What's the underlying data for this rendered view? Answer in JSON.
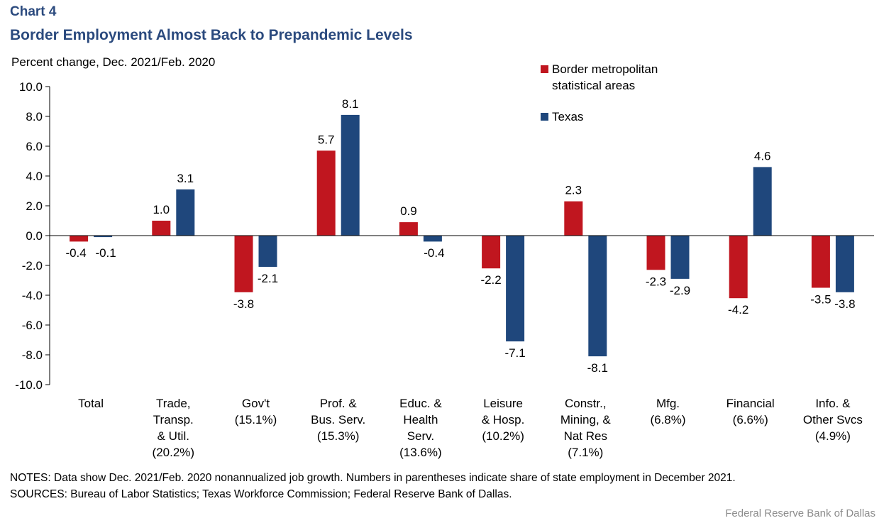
{
  "header": {
    "chart_label": "Chart 4",
    "title": "Border Employment Almost Back to Prepandemic Levels"
  },
  "chart_data": {
    "type": "bar",
    "title": "Border Employment Almost Back to Prepandemic Levels",
    "ylabel": "Percent change, Dec. 2021/Feb. 2020",
    "xlabel": "",
    "ylim": [
      -10,
      10
    ],
    "ytick_step": 2,
    "y_tick_labels": [
      "10.0",
      "8.0",
      "6.0",
      "4.0",
      "2.0",
      "0.0",
      "-2.0",
      "-4.0",
      "-6.0",
      "-8.0",
      "-10.0"
    ],
    "grid": false,
    "legend_position": "top-right",
    "categories": [
      [
        "Total"
      ],
      [
        "Trade,",
        "Transp.",
        "& Util.",
        "(20.2%)"
      ],
      [
        "Gov't",
        "(15.1%)"
      ],
      [
        "Prof. &",
        "Bus. Serv.",
        "(15.3%)"
      ],
      [
        "Educ. &",
        "Health",
        "Serv.",
        "(13.6%)"
      ],
      [
        "Leisure",
        "& Hosp.",
        "(10.2%)"
      ],
      [
        "Constr.,",
        "Mining, &",
        "Nat Res",
        "(7.1%)"
      ],
      [
        "Mfg.",
        "(6.8%)"
      ],
      [
        "Financial",
        "(6.6%)"
      ],
      [
        "Info. &",
        "Other Svcs",
        "(4.9%)"
      ]
    ],
    "series": [
      {
        "name": "Border metropolitan statistical areas",
        "legend_lines": [
          "Border metropolitan",
          "statistical areas"
        ],
        "color": "#c0161f",
        "values": [
          -0.4,
          1.0,
          -3.8,
          5.7,
          0.9,
          -2.2,
          2.3,
          -2.3,
          -4.2,
          -3.5
        ],
        "labels": [
          "-0.4",
          "1.0",
          "-3.8",
          "5.7",
          "0.9",
          "-2.2",
          "2.3",
          "-2.3",
          "-4.2",
          "-3.5"
        ]
      },
      {
        "name": "Texas",
        "legend_lines": [
          "Texas"
        ],
        "color": "#1f477c",
        "values": [
          -0.1,
          3.1,
          -2.1,
          8.1,
          -0.4,
          -7.1,
          -8.1,
          -2.9,
          4.6,
          -3.8
        ],
        "labels": [
          "-0.1",
          "3.1",
          "-2.1",
          "8.1",
          "-0.4",
          "-7.1",
          "-8.1",
          "-2.9",
          "4.6",
          "-3.8"
        ]
      }
    ]
  },
  "footer": {
    "notes": "NOTES: Data show Dec. 2021/Feb. 2020 nonannualized job growth. Numbers in parentheses indicate share of state employment in December 2021.",
    "sources": "SOURCES: Bureau of Labor Statistics; Texas Workforce Commission; Federal Reserve Bank of Dallas.",
    "credit": "Federal Reserve Bank of Dallas"
  }
}
